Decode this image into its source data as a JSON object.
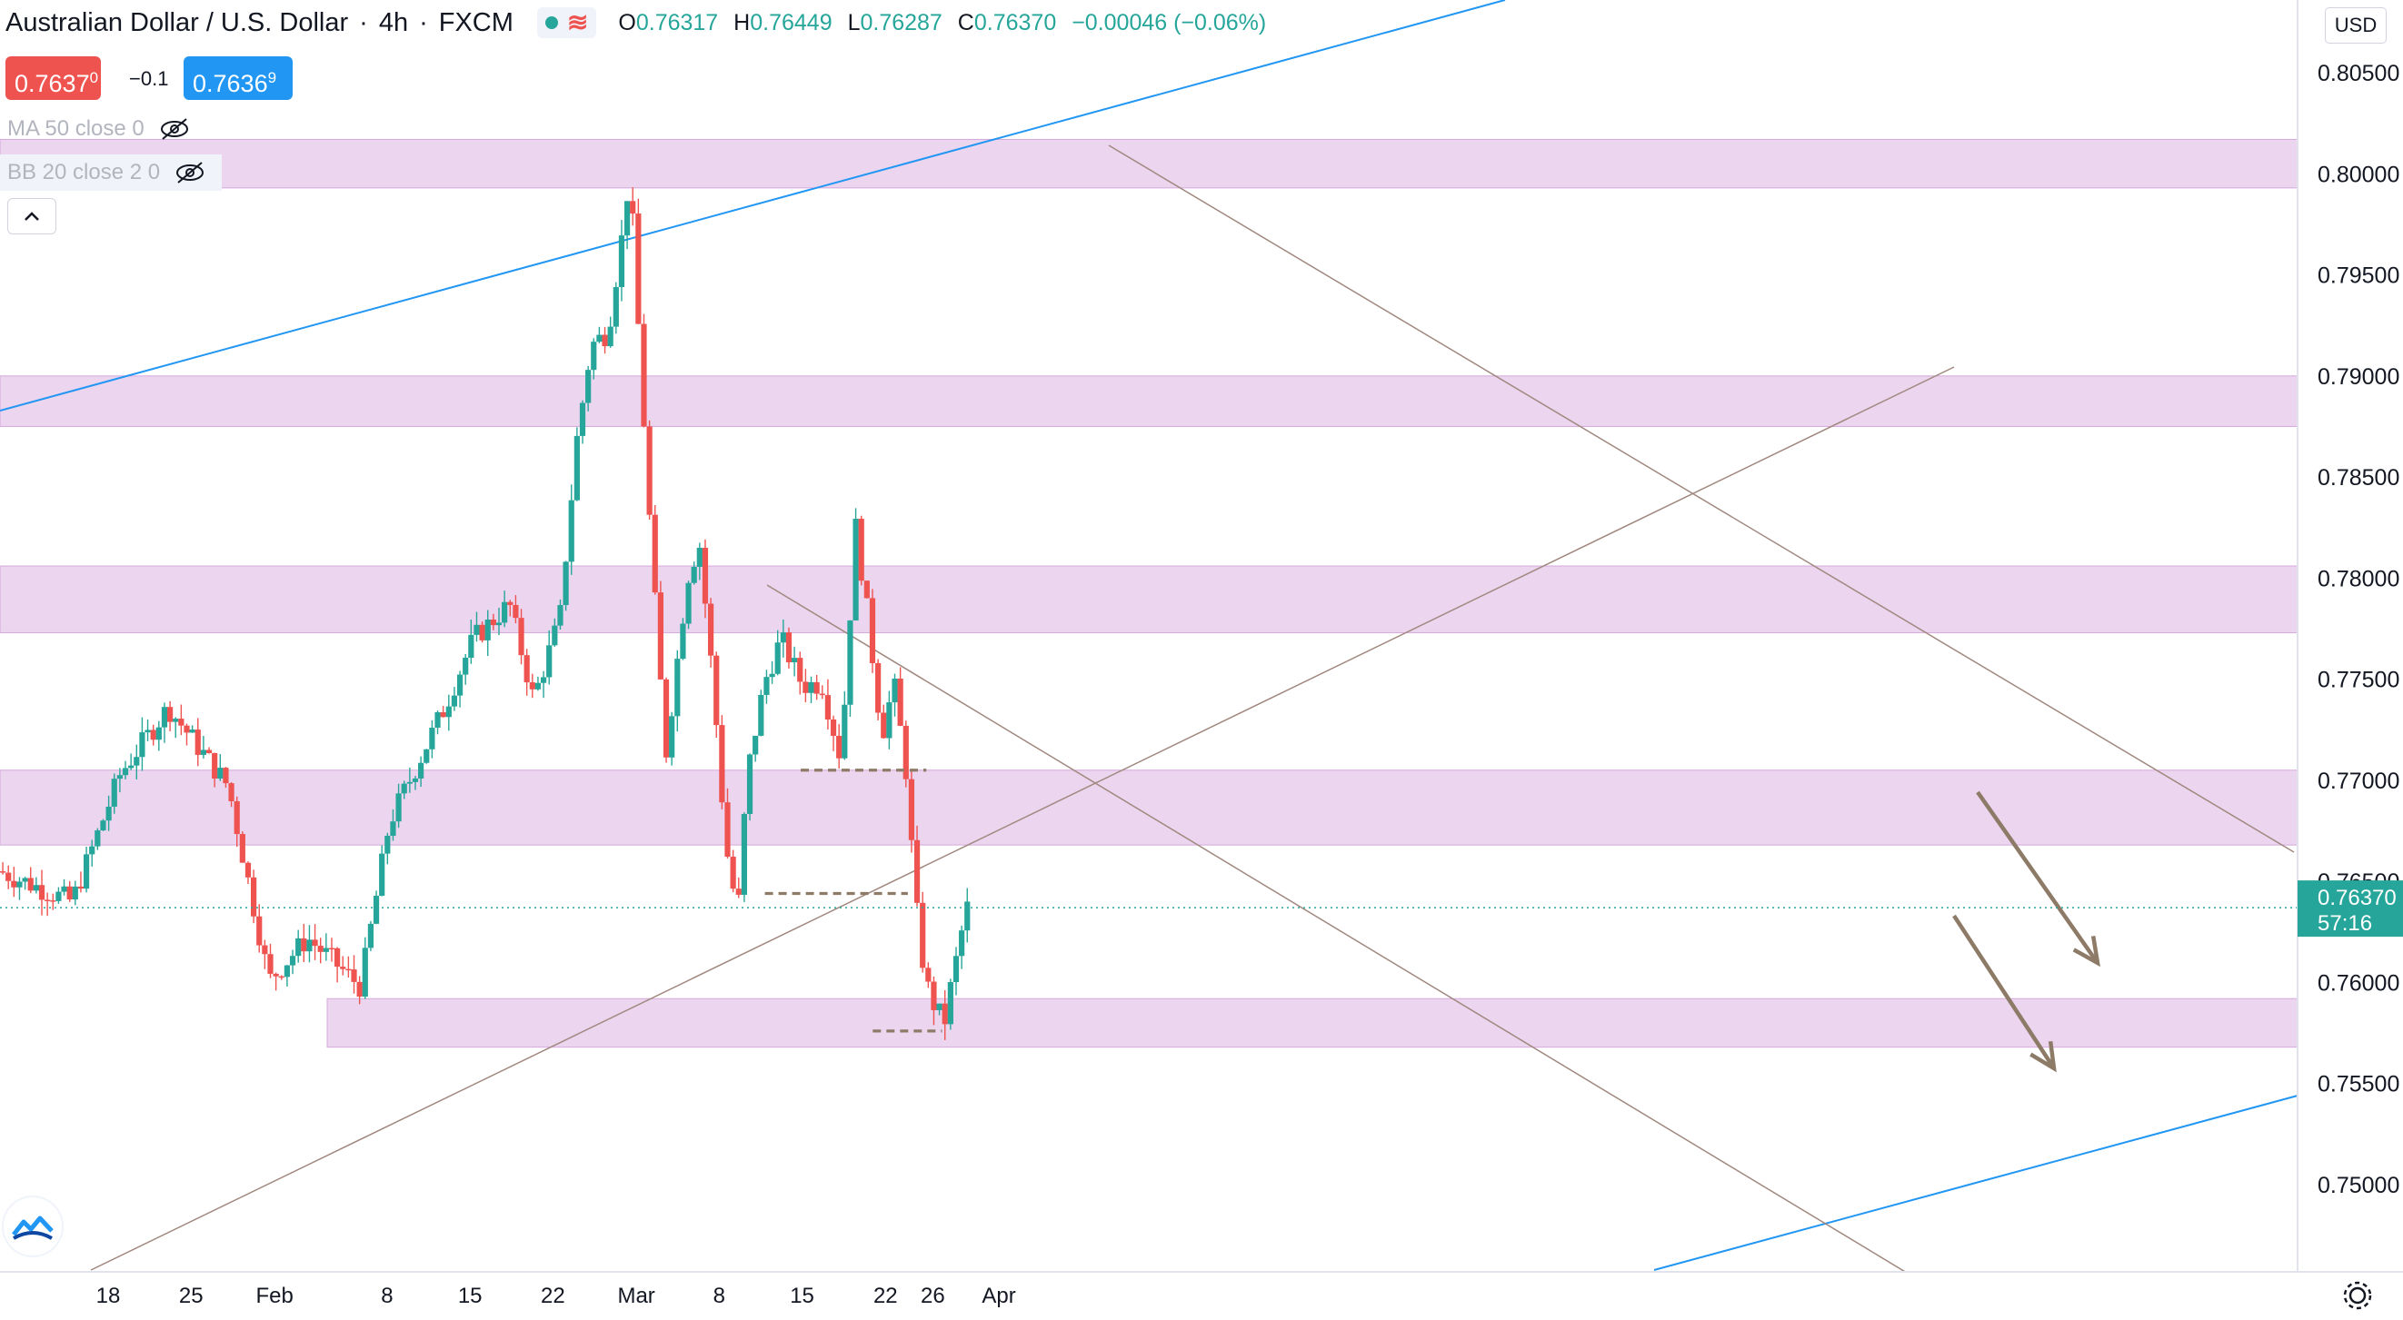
{
  "header": {
    "title": "Australian Dollar / U.S. Dollar",
    "interval": "4h",
    "source": "FXCM",
    "open_label": "O",
    "open": "0.76317",
    "high_label": "H",
    "high": "0.76449",
    "low_label": "L",
    "low": "0.76287",
    "close_label": "C",
    "close": "0.76370",
    "change": "−0.00046 (−0.06%)",
    "status_wave": "≋"
  },
  "trade": {
    "sell_main": "0.7637",
    "sell_sup": "0",
    "spread": "−0.1",
    "buy_main": "0.7636",
    "buy_sup": "9"
  },
  "indicators": {
    "ma": "MA 50 close 0",
    "bb": "BB 20 close 2 0"
  },
  "price_axis": {
    "currency": "USD",
    "ticks": [
      "0.80500",
      "0.80000",
      "0.79500",
      "0.79000",
      "0.78500",
      "0.78000",
      "0.77500",
      "0.77000",
      "0.76500",
      "0.76000",
      "0.75500",
      "0.75000"
    ]
  },
  "current_price": {
    "value": "0.76370",
    "countdown": "57:16"
  },
  "colors": {
    "up": "#26a69a",
    "down": "#ef5350",
    "zone": "#e1bee7",
    "trend_blue": "#2196f3",
    "annot": "#8d7b68",
    "trendline": "#a1887f"
  },
  "icons": {
    "visibility": "eye-off-icon",
    "collapse": "chevron-up-icon",
    "logo": "tradingview-logo-icon",
    "settings": "gear-icon"
  },
  "chart_data": {
    "type": "candlestick",
    "symbol": "AUD/USD",
    "ylim": [
      0.746,
      0.809
    ],
    "x_ticks": [
      {
        "label": "18",
        "x": 0.045
      },
      {
        "label": "25",
        "x": 0.0795
      },
      {
        "label": "Feb",
        "x": 0.1143
      },
      {
        "label": "8",
        "x": 0.1611
      },
      {
        "label": "15",
        "x": 0.1956
      },
      {
        "label": "22",
        "x": 0.2301
      },
      {
        "label": "Mar",
        "x": 0.2648
      },
      {
        "label": "8",
        "x": 0.2993
      },
      {
        "label": "15",
        "x": 0.3338
      },
      {
        "label": "22",
        "x": 0.3685
      },
      {
        "label": "26",
        "x": 0.3882
      },
      {
        "label": "Apr",
        "x": 0.4157
      }
    ],
    "zones": [
      {
        "low": 0.7993,
        "high": 0.8017
      },
      {
        "low": 0.7875,
        "high": 0.79
      },
      {
        "low": 0.7773,
        "high": 0.7806
      },
      {
        "low": 0.7668,
        "high": 0.7705
      },
      {
        "low": 0.7568,
        "high": 0.7592
      }
    ],
    "levels": [
      {
        "price": 0.7705,
        "x0": 0.3332,
        "x1": 0.3855
      },
      {
        "price": 0.7644,
        "x0": 0.3183,
        "x1": 0.3778
      },
      {
        "price": 0.7576,
        "x0": 0.3632,
        "x1": 0.392
      }
    ],
    "key_points": [
      {
        "x": 0.03,
        "price": 0.764
      },
      {
        "x": 0.05,
        "price": 0.7703
      },
      {
        "x": 0.07,
        "price": 0.7736
      },
      {
        "x": 0.095,
        "price": 0.7697
      },
      {
        "x": 0.112,
        "price": 0.7601
      },
      {
        "x": 0.128,
        "price": 0.7622
      },
      {
        "x": 0.15,
        "price": 0.7598
      },
      {
        "x": 0.162,
        "price": 0.7679
      },
      {
        "x": 0.185,
        "price": 0.7736
      },
      {
        "x": 0.197,
        "price": 0.777
      },
      {
        "x": 0.212,
        "price": 0.7787
      },
      {
        "x": 0.222,
        "price": 0.774
      },
      {
        "x": 0.233,
        "price": 0.778
      },
      {
        "x": 0.24,
        "price": 0.7868
      },
      {
        "x": 0.246,
        "price": 0.7915
      },
      {
        "x": 0.253,
        "price": 0.7922
      },
      {
        "x": 0.26,
        "price": 0.7978
      },
      {
        "x": 0.262,
        "price": 0.8003
      },
      {
        "x": 0.265,
        "price": 0.7938
      },
      {
        "x": 0.271,
        "price": 0.7815
      },
      {
        "x": 0.277,
        "price": 0.7712
      },
      {
        "x": 0.286,
        "price": 0.78
      },
      {
        "x": 0.291,
        "price": 0.7818
      },
      {
        "x": 0.297,
        "price": 0.7745
      },
      {
        "x": 0.302,
        "price": 0.7668
      },
      {
        "x": 0.307,
        "price": 0.7633
      },
      {
        "x": 0.311,
        "price": 0.7703
      },
      {
        "x": 0.318,
        "price": 0.7748
      },
      {
        "x": 0.325,
        "price": 0.777
      },
      {
        "x": 0.334,
        "price": 0.7747
      },
      {
        "x": 0.342,
        "price": 0.7748
      },
      {
        "x": 0.35,
        "price": 0.771
      },
      {
        "x": 0.356,
        "price": 0.7826
      },
      {
        "x": 0.361,
        "price": 0.7782
      },
      {
        "x": 0.367,
        "price": 0.7722
      },
      {
        "x": 0.372,
        "price": 0.7748
      },
      {
        "x": 0.377,
        "price": 0.7705
      },
      {
        "x": 0.381,
        "price": 0.764
      },
      {
        "x": 0.385,
        "price": 0.7601
      },
      {
        "x": 0.389,
        "price": 0.7588
      },
      {
        "x": 0.393,
        "price": 0.758
      },
      {
        "x": 0.396,
        "price": 0.76
      },
      {
        "x": 0.399,
        "price": 0.7617
      },
      {
        "x": 0.402,
        "price": 0.7637
      }
    ]
  }
}
